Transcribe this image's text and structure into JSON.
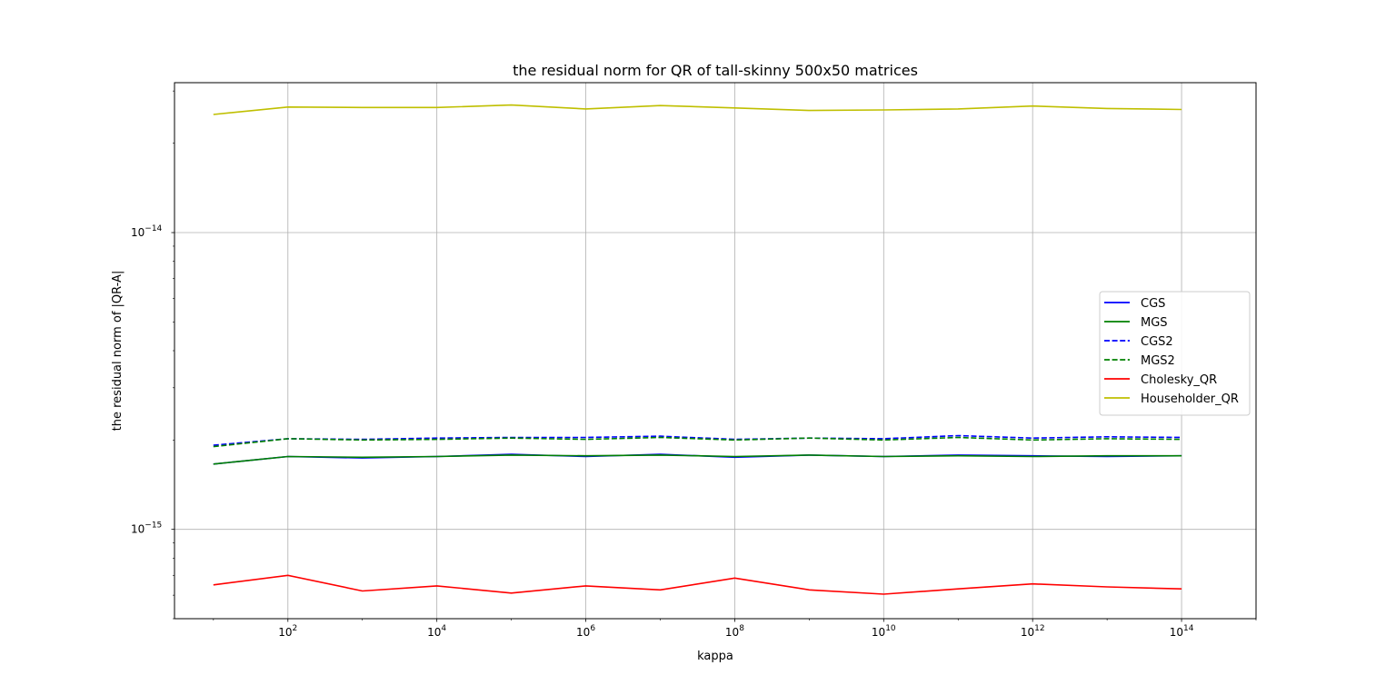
{
  "chart_data": {
    "type": "line",
    "title": "the residual norm for QR of tall-skinny 500x50 matrices",
    "xlabel": "kappa",
    "ylabel": "the residual norm of |QR-A|",
    "x_scale": "log",
    "y_scale": "log",
    "xlim": [
      3.0,
      1000000000000000.0
    ],
    "ylim": [
      5e-16,
      3.2e-14
    ],
    "grid": true,
    "legend_position": "center-right",
    "x_ticks": [
      {
        "value": 100.0,
        "base": "10",
        "exp": "2"
      },
      {
        "value": 10000.0,
        "base": "10",
        "exp": "4"
      },
      {
        "value": 1000000.0,
        "base": "10",
        "exp": "6"
      },
      {
        "value": 100000000.0,
        "base": "10",
        "exp": "8"
      },
      {
        "value": 10000000000.0,
        "base": "10",
        "exp": "10"
      },
      {
        "value": 1000000000000.0,
        "base": "10",
        "exp": "12"
      },
      {
        "value": 100000000000000.0,
        "base": "10",
        "exp": "14"
      }
    ],
    "y_ticks": [
      {
        "value": 1e-14,
        "base": "10",
        "exp": "−14"
      },
      {
        "value": 1e-15,
        "base": "10",
        "exp": "−15"
      }
    ],
    "x": [
      10.0,
      100.0,
      1000.0,
      10000.0,
      100000.0,
      1000000.0,
      10000000.0,
      100000000.0,
      1000000000.0,
      10000000000.0,
      100000000000.0,
      1000000000000.0,
      10000000000000.0,
      100000000000000.0
    ],
    "series": [
      {
        "name": "CGS",
        "color": "#0000ff",
        "dash": "solid",
        "values": [
          1.66e-15,
          1.76e-15,
          1.74e-15,
          1.76e-15,
          1.79e-15,
          1.76e-15,
          1.79e-15,
          1.75e-15,
          1.78e-15,
          1.76e-15,
          1.78e-15,
          1.77e-15,
          1.76e-15,
          1.77e-15
        ]
      },
      {
        "name": "MGS",
        "color": "#008000",
        "dash": "solid",
        "values": [
          1.66e-15,
          1.76e-15,
          1.75e-15,
          1.76e-15,
          1.78e-15,
          1.77e-15,
          1.78e-15,
          1.76e-15,
          1.78e-15,
          1.76e-15,
          1.77e-15,
          1.76e-15,
          1.77e-15,
          1.77e-15
        ]
      },
      {
        "name": "CGS2",
        "color": "#0000ff",
        "dash": "dashed",
        "values": [
          1.92e-15,
          2.02e-15,
          2.01e-15,
          2.03e-15,
          2.04e-15,
          2.04e-15,
          2.06e-15,
          2.01e-15,
          2.03e-15,
          2.02e-15,
          2.07e-15,
          2.03e-15,
          2.05e-15,
          2.04e-15
        ]
      },
      {
        "name": "MGS2",
        "color": "#008000",
        "dash": "dashed",
        "values": [
          1.9e-15,
          2.02e-15,
          2e-15,
          2.01e-15,
          2.03e-15,
          2.01e-15,
          2.04e-15,
          2e-15,
          2.03e-15,
          2e-15,
          2.04e-15,
          2e-15,
          2.02e-15,
          2.01e-15
        ]
      },
      {
        "name": "Cholesky_QR",
        "color": "#ff0000",
        "dash": "solid",
        "values": [
          6.5e-16,
          7e-16,
          6.2e-16,
          6.45e-16,
          6.1e-16,
          6.45e-16,
          6.25e-16,
          6.85e-16,
          6.25e-16,
          6.05e-16,
          6.3e-16,
          6.55e-16,
          6.4e-16,
          6.3e-16
        ]
      },
      {
        "name": "Householder_QR",
        "color": "#bfbf00",
        "dash": "solid",
        "values": [
          2.5e-14,
          2.65e-14,
          2.64e-14,
          2.64e-14,
          2.69e-14,
          2.61e-14,
          2.68e-14,
          2.63e-14,
          2.58e-14,
          2.59e-14,
          2.61e-14,
          2.67e-14,
          2.62e-14,
          2.6e-14
        ]
      }
    ]
  }
}
